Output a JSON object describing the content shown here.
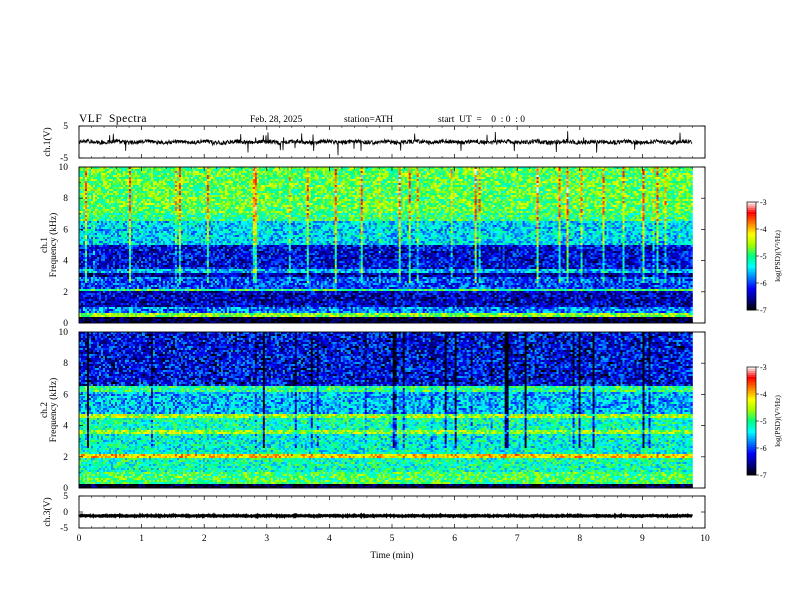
{
  "header": {
    "title": "VLF  Spectra",
    "date": "Feb. 28, 2025",
    "station": "station=ATH",
    "start": "start  UT  =    0  : 0  : 0"
  },
  "chart_data": [
    {
      "type": "line",
      "panel": "ch1-waveform",
      "ylabel": "ch.1(V)",
      "ylim": [
        -5,
        5
      ],
      "yticks": [
        "5",
        "-5"
      ],
      "xlim": [
        0,
        10
      ],
      "data_end_min": 9.8,
      "baseline": 0.0,
      "noise_amplitude": 1.3
    },
    {
      "type": "heatmap",
      "panel": "ch1-spectrogram",
      "ylabel": "ch.1  Frequency (kHz)",
      "ylim": [
        0,
        10
      ],
      "yticks": [
        "0",
        "2",
        "4",
        "6",
        "8",
        "10"
      ],
      "xlim": [
        0,
        10
      ],
      "data_end_min": 9.8,
      "colorbar": {
        "label": "log(PSD)(V²/Hz)",
        "range": [
          -7,
          -3
        ],
        "ticks": [
          "-3",
          "-4",
          "-5",
          "-6",
          "-7"
        ]
      },
      "bands": [
        {
          "from": 0.0,
          "to": 0.35,
          "value": -6.9
        },
        {
          "from": 0.35,
          "to": 0.6,
          "value": -4.6
        },
        {
          "from": 0.6,
          "to": 1.0,
          "value": -5.8
        },
        {
          "from": 1.0,
          "to": 2.0,
          "value": -6.4
        },
        {
          "from": 2.0,
          "to": 2.2,
          "value": -5.0
        },
        {
          "from": 2.2,
          "to": 3.0,
          "value": -6.0
        },
        {
          "from": 3.0,
          "to": 3.2,
          "value": -6.5
        },
        {
          "from": 3.2,
          "to": 3.4,
          "value": -5.6
        },
        {
          "from": 3.4,
          "to": 5.0,
          "value": -6.3
        },
        {
          "from": 5.0,
          "to": 6.5,
          "value": -5.5
        },
        {
          "from": 6.5,
          "to": 7.0,
          "value": -5.0
        },
        {
          "from": 7.0,
          "to": 10.0,
          "value": -4.8
        }
      ]
    },
    {
      "type": "heatmap",
      "panel": "ch2-spectrogram",
      "ylabel": "ch.2  Frequency (kHz)",
      "ylim": [
        0,
        10
      ],
      "yticks": [
        "0",
        "2",
        "4",
        "6",
        "8",
        "10"
      ],
      "xlim": [
        0,
        10
      ],
      "data_end_min": 9.8,
      "colorbar": {
        "label": "log(PSD)(V²/Hz)",
        "range": [
          -7,
          -3
        ],
        "ticks": [
          "-3",
          "-4",
          "-5",
          "-6",
          "-7"
        ]
      },
      "bands": [
        {
          "from": 0.0,
          "to": 0.25,
          "value": -6.9
        },
        {
          "from": 0.25,
          "to": 1.0,
          "value": -4.9
        },
        {
          "from": 1.0,
          "to": 1.9,
          "value": -5.2
        },
        {
          "from": 1.9,
          "to": 2.2,
          "value": -4.1
        },
        {
          "from": 2.2,
          "to": 3.5,
          "value": -5.3
        },
        {
          "from": 3.5,
          "to": 3.7,
          "value": -4.6
        },
        {
          "from": 3.7,
          "to": 4.5,
          "value": -5.2
        },
        {
          "from": 4.5,
          "to": 4.8,
          "value": -4.5
        },
        {
          "from": 4.8,
          "to": 6.2,
          "value": -5.6
        },
        {
          "from": 6.2,
          "to": 6.5,
          "value": -5.0
        },
        {
          "from": 6.5,
          "to": 10.0,
          "value": -6.2
        }
      ]
    },
    {
      "type": "line",
      "panel": "ch3-waveform",
      "ylabel": "ch.3(V)",
      "ylim": [
        -5,
        5
      ],
      "yticks": [
        "5",
        "0",
        "-5"
      ],
      "xlim": [
        0,
        10
      ],
      "data_end_min": 9.8,
      "baseline": -1.2,
      "noise_amplitude": 0.25
    }
  ],
  "xaxis": {
    "label": "Time (min)",
    "ticks": [
      "0",
      "1",
      "2",
      "3",
      "4",
      "5",
      "6",
      "7",
      "8",
      "9",
      "10"
    ]
  },
  "colors": {
    "scale": [
      "#000000",
      "#00008b",
      "#0000ff",
      "#0080ff",
      "#00ffff",
      "#00ff80",
      "#a0ff00",
      "#ffff00",
      "#ff8000",
      "#ff0000",
      "#ffffff"
    ]
  }
}
